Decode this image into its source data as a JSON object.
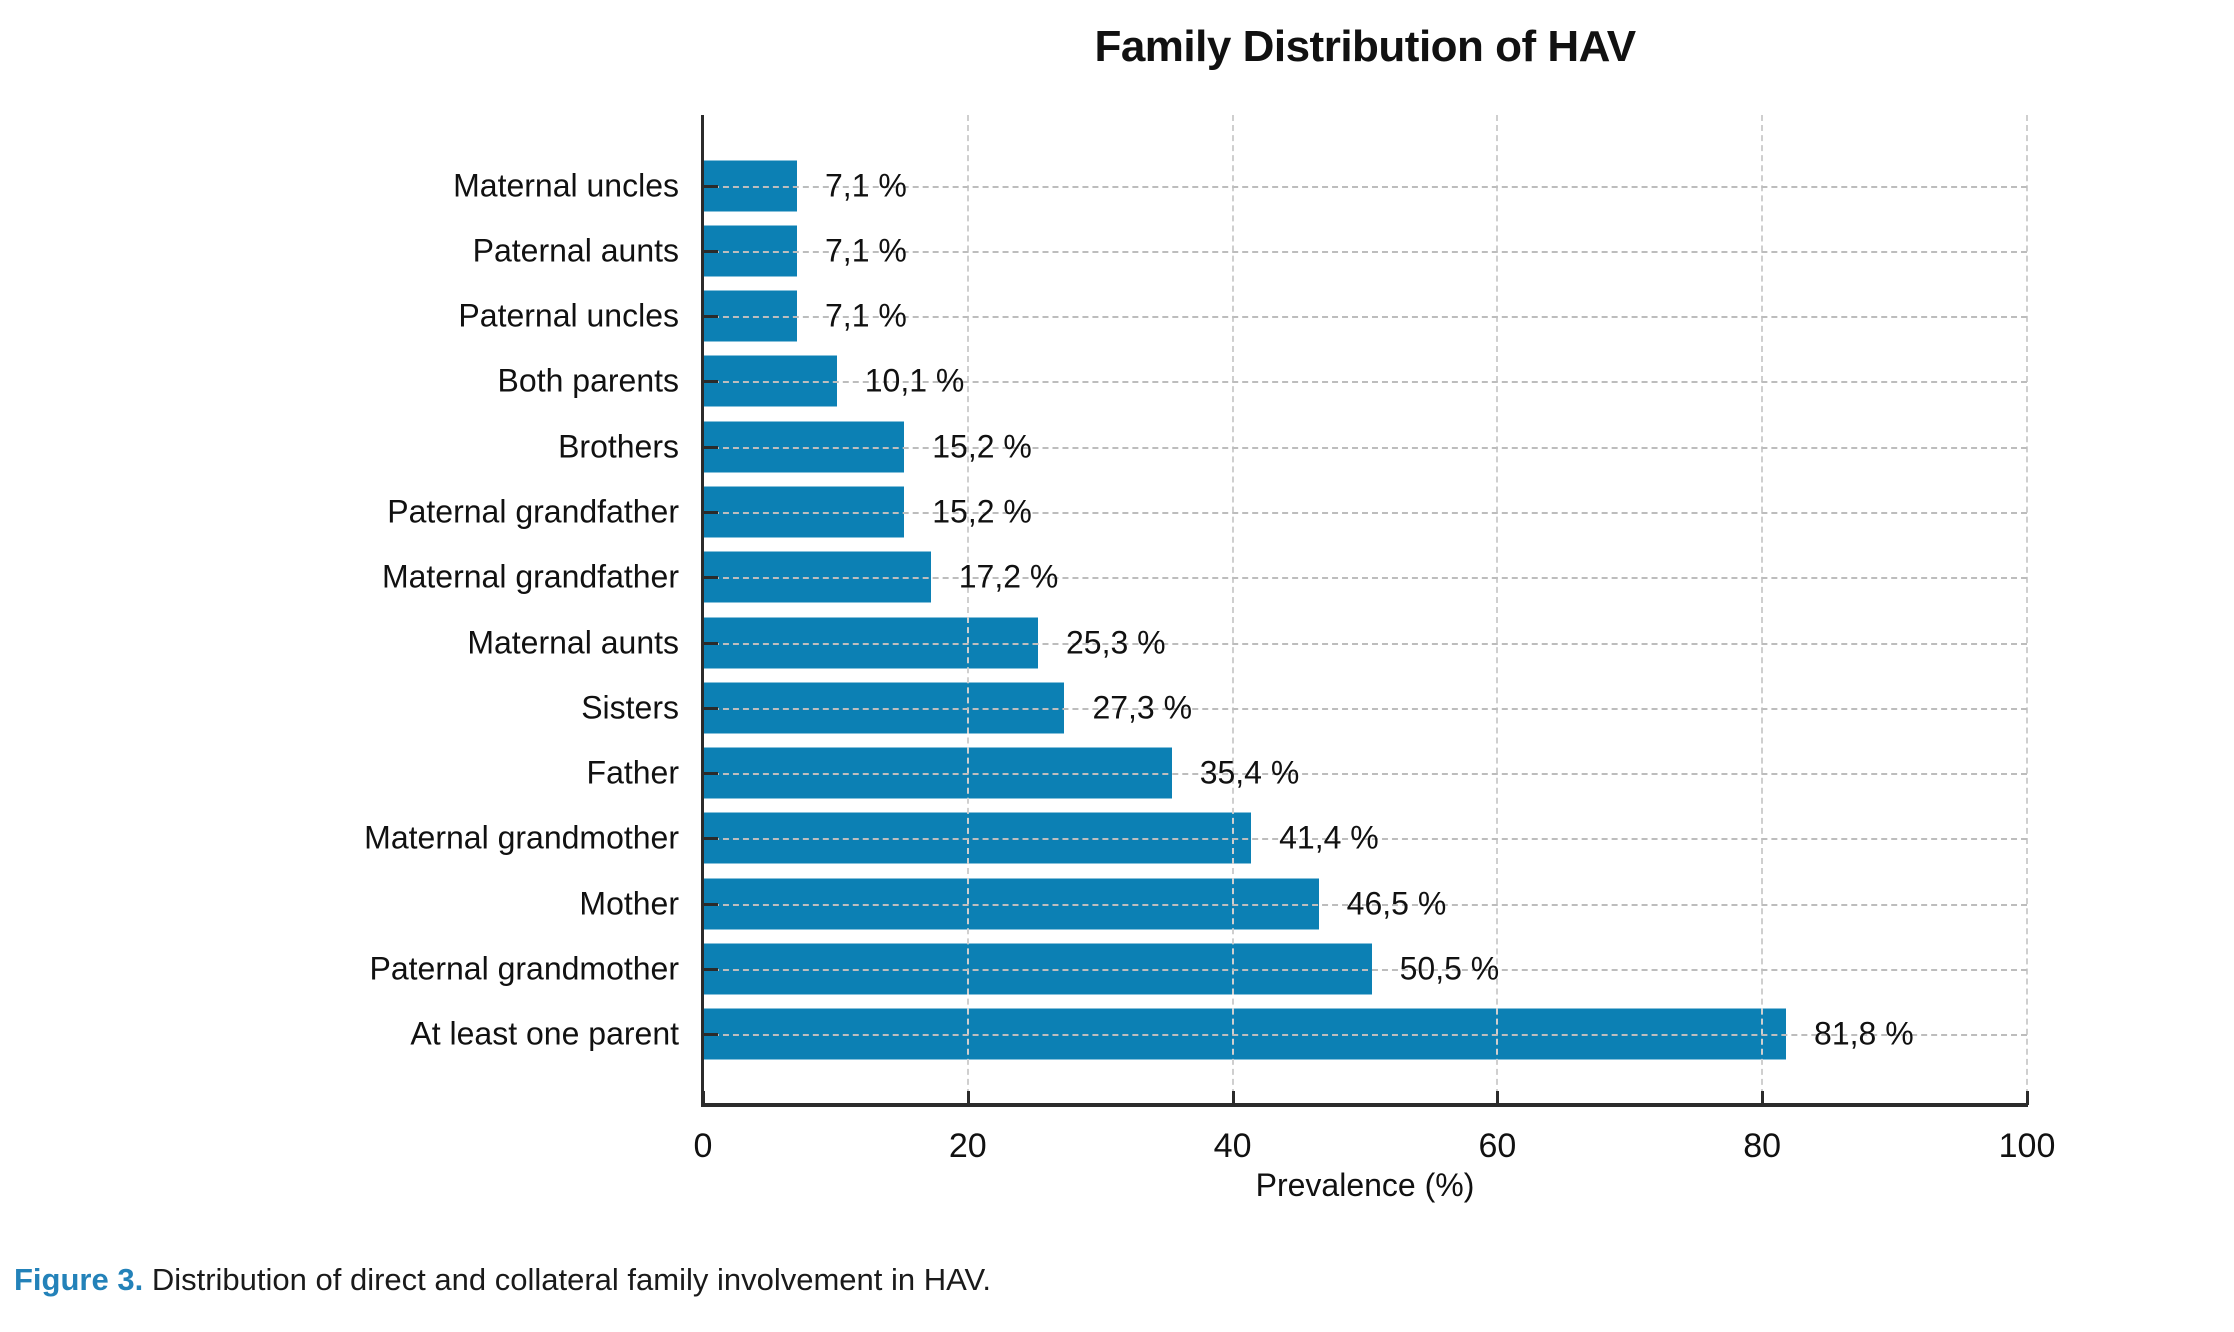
{
  "chart_data": {
    "type": "bar",
    "orientation": "horizontal",
    "title": "Family Distribution of HAV",
    "xlabel": "Prevalence (%)",
    "xlim": [
      0,
      100
    ],
    "x_ticks": [
      0,
      20,
      40,
      60,
      80,
      100
    ],
    "grid": "dashed, both axes, drawn over bars",
    "legend": "none",
    "bar_color": "#0C80B4",
    "categories": [
      "Maternal uncles",
      "Paternal aunts",
      "Paternal uncles",
      "Both parents",
      "Brothers",
      "Paternal grandfather",
      "Maternal grandfather",
      "Maternal aunts",
      "Sisters",
      "Father",
      "Maternal grandmother",
      "Mother",
      "Paternal grandmother",
      "At least one parent"
    ],
    "values": [
      7.1,
      7.1,
      7.1,
      10.1,
      15.2,
      15.2,
      17.2,
      25.3,
      27.3,
      35.4,
      41.4,
      46.5,
      50.5,
      81.8
    ],
    "value_labels": [
      "7,1 %",
      "7,1 %",
      "7,1 %",
      "10,1 %",
      "15,2 %",
      "15,2 %",
      "17,2 %",
      "25,3 %",
      "27,3 %",
      "35,4 %",
      "41,4 %",
      "46,5 %",
      "50,5 %",
      "81,8 %"
    ]
  },
  "caption": {
    "label": "Figure 3.",
    "text": "Distribution of direct and collateral family involvement in HAV.",
    "label_color": "#2382B9"
  }
}
